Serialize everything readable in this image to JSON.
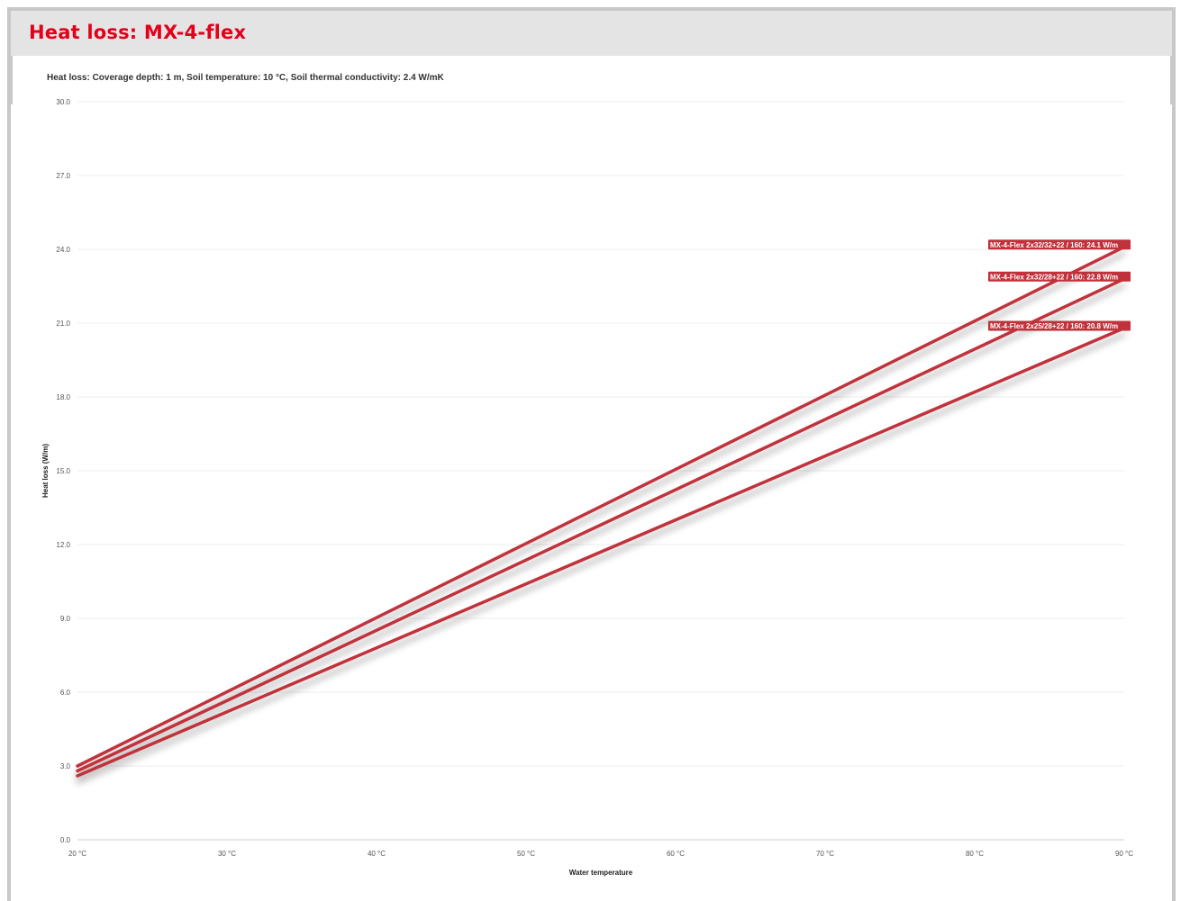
{
  "header": {
    "title": "Heat loss:  MX-4-flex"
  },
  "chart_data": {
    "type": "line",
    "title": "Heat loss: Coverage depth: 1 m, Soil temperature: 10 °C, Soil thermal conductivity: 2.4 W/mK",
    "xlabel": "Water temperature",
    "ylabel": "Heat loss (W/m)",
    "x_unit_suffix": " °C",
    "xlim": [
      20,
      90
    ],
    "ylim": [
      0,
      30
    ],
    "x_ticks": [
      20,
      30,
      40,
      50,
      60,
      70,
      80,
      90
    ],
    "x_tick_labels": [
      "20 °C",
      "30 °C",
      "40 °C",
      "50 °C",
      "60 °C",
      "70 °C",
      "80 °C",
      "90 °C"
    ],
    "y_ticks": [
      0,
      3,
      6,
      9,
      12,
      15,
      18,
      21,
      24,
      27,
      30
    ],
    "y_tick_labels": [
      "0.0",
      "3.0",
      "6.0",
      "9.0",
      "12.0",
      "15.0",
      "18.0",
      "21.0",
      "24.0",
      "27.0",
      "30.0"
    ],
    "grid": true,
    "line_color": "#c1313b",
    "series": [
      {
        "name": "MX-4-Flex 2x32/32+22 / 160",
        "x": [
          20,
          90
        ],
        "values": [
          3.0,
          24.1
        ],
        "end_label": "MX-4-Flex 2x32/32+22 / 160: 24.1 W/m"
      },
      {
        "name": "MX-4-Flex 2x32/28+22 / 160",
        "x": [
          20,
          90
        ],
        "values": [
          2.8,
          22.8
        ],
        "end_label": "MX-4-Flex 2x32/28+22 / 160: 22.8 W/m"
      },
      {
        "name": "MX-4-Flex 2x25/28+22 / 160",
        "x": [
          20,
          90
        ],
        "values": [
          2.6,
          20.8
        ],
        "end_label": "MX-4-Flex 2x25/28+22 / 160: 20.8 W/m"
      }
    ]
  }
}
